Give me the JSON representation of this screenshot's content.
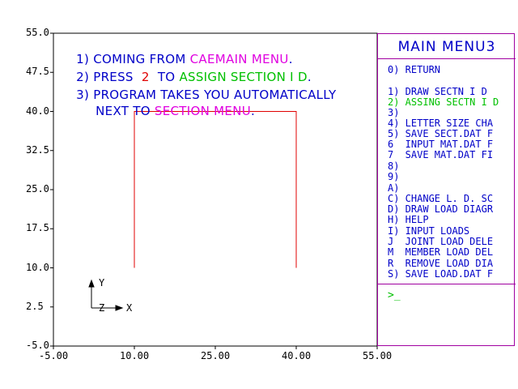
{
  "instructions": {
    "line1": {
      "num": "1)",
      "pre": "COMING FROM ",
      "hl": "CAEMAIN MENU",
      "post": ".",
      "hl_color": "#e000e0"
    },
    "line2": {
      "num": "2)",
      "pre": "PRESS  ",
      "key": "2",
      "mid": "  TO ",
      "hl": "ASSIGN SECTION I D",
      "post": ".",
      "key_color": "#e00000",
      "hl_color": "#00c000"
    },
    "line3": {
      "num": "3)",
      "text": "PROGRAM TAKES YOU AUTOMATICALLY"
    },
    "line4": {
      "pre": "NEXT TO ",
      "hl": "SECTION MENU",
      "post": ".",
      "hl_color": "#e000e0"
    },
    "text_color": "#0000c8"
  },
  "axes": {
    "y_ticks": [
      "55.0",
      "47.5",
      "40.0",
      "32.5",
      "25.0",
      "17.5",
      "10.0",
      "2.5",
      "-5.0"
    ],
    "x_ticks": [
      "-5.00",
      "10.00",
      "25.00",
      "40.00",
      "55.00"
    ],
    "triad": {
      "y": "Y",
      "z": "Z",
      "x": "X"
    }
  },
  "drawing": {
    "color": "#e00000",
    "frame_x_values": [
      10.0,
      40.0
    ],
    "frame_y_values": [
      10.0,
      40.0
    ]
  },
  "menu": {
    "title": "MAIN MENU3",
    "items": [
      {
        "text": "0) RETURN",
        "color": "#0000c8"
      },
      {
        "text": "1) DRAW SECTN I D",
        "color": "#0000c8"
      },
      {
        "text": "2) ASSING SECTN I D",
        "color": "#00c000"
      },
      {
        "text": "3)",
        "color": "#0000c8"
      },
      {
        "text": "4) LETTER SIZE CHA",
        "color": "#0000c8"
      },
      {
        "text": "5) SAVE SECT.DAT F",
        "color": "#0000c8"
      },
      {
        "text": "6  INPUT MAT.DAT F",
        "color": "#0000c8"
      },
      {
        "text": "7  SAVE MAT.DAT FI",
        "color": "#0000c8"
      },
      {
        "text": "8)",
        "color": "#0000c8"
      },
      {
        "text": "9)",
        "color": "#0000c8"
      },
      {
        "text": "A)",
        "color": "#0000c8"
      },
      {
        "text": "C) CHANGE L. D. SC",
        "color": "#0000c8"
      },
      {
        "text": "D) DRAW LOAD DIAGR",
        "color": "#0000c8"
      },
      {
        "text": "H) HELP",
        "color": "#0000c8"
      },
      {
        "text": "I) INPUT LOADS",
        "color": "#0000c8"
      },
      {
        "text": "J  JOINT LOAD DELE",
        "color": "#0000c8"
      },
      {
        "text": "M  MEMBER LOAD DEL",
        "color": "#0000c8"
      },
      {
        "text": "R  REMOVE LOAD DIA",
        "color": "#0000c8"
      },
      {
        "text": "S) SAVE LOAD.DAT F",
        "color": "#0000c8"
      }
    ],
    "prompt": ">_",
    "border_color": "#a000a0"
  }
}
